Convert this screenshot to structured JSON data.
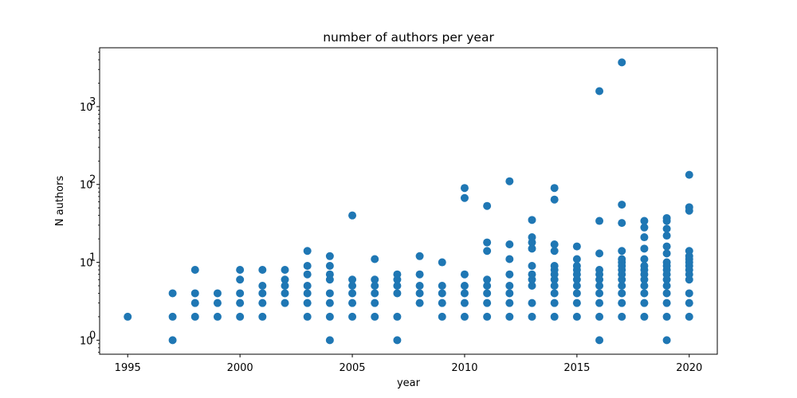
{
  "chart_data": {
    "type": "scatter",
    "title": "number of authors per year",
    "xlabel": "year",
    "ylabel": "N authors",
    "xlim": [
      1993.75,
      2021.25
    ],
    "ylim": [
      0.66,
      5700
    ],
    "yscale": "log",
    "grid": false,
    "color": "#1f77b4",
    "x_ticks": [
      {
        "value": 1995,
        "label": "1995"
      },
      {
        "value": 2000,
        "label": "2000"
      },
      {
        "value": 2005,
        "label": "2005"
      },
      {
        "value": 2010,
        "label": "2010"
      },
      {
        "value": 2015,
        "label": "2015"
      },
      {
        "value": 2020,
        "label": "2020"
      }
    ],
    "y_ticks": [
      {
        "value": 1,
        "base": "10",
        "exp": "0"
      },
      {
        "value": 10,
        "base": "10",
        "exp": "1"
      },
      {
        "value": 100,
        "base": "10",
        "exp": "2"
      },
      {
        "value": 1000,
        "base": "10",
        "exp": "3"
      }
    ],
    "points": [
      [
        1995,
        2
      ],
      [
        1997,
        1
      ],
      [
        1997,
        2
      ],
      [
        1997,
        4
      ],
      [
        1998,
        2
      ],
      [
        1998,
        3
      ],
      [
        1998,
        4
      ],
      [
        1998,
        8
      ],
      [
        1999,
        2
      ],
      [
        1999,
        3
      ],
      [
        1999,
        4
      ],
      [
        2000,
        2
      ],
      [
        2000,
        3
      ],
      [
        2000,
        4
      ],
      [
        2000,
        6
      ],
      [
        2000,
        8
      ],
      [
        2001,
        2
      ],
      [
        2001,
        3
      ],
      [
        2001,
        4
      ],
      [
        2001,
        5
      ],
      [
        2001,
        8
      ],
      [
        2002,
        3
      ],
      [
        2002,
        4
      ],
      [
        2002,
        5
      ],
      [
        2002,
        6
      ],
      [
        2002,
        8
      ],
      [
        2003,
        2
      ],
      [
        2003,
        3
      ],
      [
        2003,
        4
      ],
      [
        2003,
        5
      ],
      [
        2003,
        7
      ],
      [
        2003,
        9
      ],
      [
        2003,
        14
      ],
      [
        2004,
        1
      ],
      [
        2004,
        2
      ],
      [
        2004,
        3
      ],
      [
        2004,
        4
      ],
      [
        2004,
        6
      ],
      [
        2004,
        7
      ],
      [
        2004,
        9
      ],
      [
        2004,
        12
      ],
      [
        2005,
        2
      ],
      [
        2005,
        3
      ],
      [
        2005,
        4
      ],
      [
        2005,
        5
      ],
      [
        2005,
        6
      ],
      [
        2005,
        40
      ],
      [
        2006,
        2
      ],
      [
        2006,
        3
      ],
      [
        2006,
        4
      ],
      [
        2006,
        5
      ],
      [
        2006,
        6
      ],
      [
        2006,
        11
      ],
      [
        2007,
        1
      ],
      [
        2007,
        2
      ],
      [
        2007,
        4
      ],
      [
        2007,
        5
      ],
      [
        2007,
        6
      ],
      [
        2007,
        7
      ],
      [
        2008,
        3
      ],
      [
        2008,
        4
      ],
      [
        2008,
        5
      ],
      [
        2008,
        7
      ],
      [
        2008,
        12
      ],
      [
        2009,
        2
      ],
      [
        2009,
        3
      ],
      [
        2009,
        4
      ],
      [
        2009,
        5
      ],
      [
        2009,
        10
      ],
      [
        2010,
        2
      ],
      [
        2010,
        3
      ],
      [
        2010,
        4
      ],
      [
        2010,
        5
      ],
      [
        2010,
        7
      ],
      [
        2010,
        67
      ],
      [
        2010,
        90
      ],
      [
        2011,
        2
      ],
      [
        2011,
        3
      ],
      [
        2011,
        4
      ],
      [
        2011,
        5
      ],
      [
        2011,
        6
      ],
      [
        2011,
        14
      ],
      [
        2011,
        18
      ],
      [
        2011,
        53
      ],
      [
        2012,
        2
      ],
      [
        2012,
        3
      ],
      [
        2012,
        4
      ],
      [
        2012,
        5
      ],
      [
        2012,
        7
      ],
      [
        2012,
        11
      ],
      [
        2012,
        17
      ],
      [
        2012,
        110
      ],
      [
        2013,
        2
      ],
      [
        2013,
        3
      ],
      [
        2013,
        5
      ],
      [
        2013,
        6
      ],
      [
        2013,
        7
      ],
      [
        2013,
        9
      ],
      [
        2013,
        15
      ],
      [
        2013,
        18
      ],
      [
        2013,
        21
      ],
      [
        2013,
        35
      ],
      [
        2014,
        2
      ],
      [
        2014,
        3
      ],
      [
        2014,
        4
      ],
      [
        2014,
        5
      ],
      [
        2014,
        6
      ],
      [
        2014,
        7
      ],
      [
        2014,
        8
      ],
      [
        2014,
        9
      ],
      [
        2014,
        14
      ],
      [
        2014,
        17
      ],
      [
        2014,
        64
      ],
      [
        2014,
        90
      ],
      [
        2015,
        2
      ],
      [
        2015,
        3
      ],
      [
        2015,
        4
      ],
      [
        2015,
        5
      ],
      [
        2015,
        6
      ],
      [
        2015,
        7
      ],
      [
        2015,
        8
      ],
      [
        2015,
        9
      ],
      [
        2015,
        11
      ],
      [
        2015,
        16
      ],
      [
        2016,
        1
      ],
      [
        2016,
        2
      ],
      [
        2016,
        3
      ],
      [
        2016,
        4
      ],
      [
        2016,
        5
      ],
      [
        2016,
        6
      ],
      [
        2016,
        7
      ],
      [
        2016,
        8
      ],
      [
        2016,
        13
      ],
      [
        2016,
        34
      ],
      [
        2016,
        1580
      ],
      [
        2017,
        2
      ],
      [
        2017,
        3
      ],
      [
        2017,
        4
      ],
      [
        2017,
        5
      ],
      [
        2017,
        6
      ],
      [
        2017,
        7
      ],
      [
        2017,
        8
      ],
      [
        2017,
        9
      ],
      [
        2017,
        10
      ],
      [
        2017,
        11
      ],
      [
        2017,
        14
      ],
      [
        2017,
        32
      ],
      [
        2017,
        55
      ],
      [
        2017,
        3700
      ],
      [
        2018,
        2
      ],
      [
        2018,
        3
      ],
      [
        2018,
        4
      ],
      [
        2018,
        5
      ],
      [
        2018,
        6
      ],
      [
        2018,
        7
      ],
      [
        2018,
        8
      ],
      [
        2018,
        9
      ],
      [
        2018,
        11
      ],
      [
        2018,
        15
      ],
      [
        2018,
        21
      ],
      [
        2018,
        28
      ],
      [
        2018,
        34
      ],
      [
        2019,
        1
      ],
      [
        2019,
        2
      ],
      [
        2019,
        3
      ],
      [
        2019,
        4
      ],
      [
        2019,
        5
      ],
      [
        2019,
        6
      ],
      [
        2019,
        7
      ],
      [
        2019,
        8
      ],
      [
        2019,
        9
      ],
      [
        2019,
        10
      ],
      [
        2019,
        13
      ],
      [
        2019,
        16
      ],
      [
        2019,
        22
      ],
      [
        2019,
        27
      ],
      [
        2019,
        34
      ],
      [
        2019,
        37
      ],
      [
        2020,
        2
      ],
      [
        2020,
        3
      ],
      [
        2020,
        4
      ],
      [
        2020,
        6
      ],
      [
        2020,
        7
      ],
      [
        2020,
        8
      ],
      [
        2020,
        9
      ],
      [
        2020,
        10
      ],
      [
        2020,
        11
      ],
      [
        2020,
        12
      ],
      [
        2020,
        14
      ],
      [
        2020,
        46
      ],
      [
        2020,
        51
      ],
      [
        2020,
        133
      ]
    ]
  }
}
